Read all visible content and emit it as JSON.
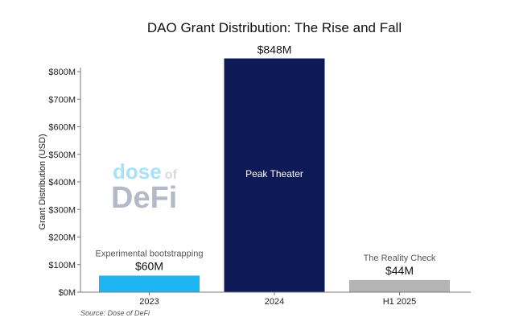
{
  "chart_data": {
    "type": "bar",
    "title": "DAO Grant Distribution: The Rise and Fall",
    "xlabel": "",
    "ylabel": "Grant Distribution (USD)",
    "categories": [
      "2023",
      "2024",
      "H1 2025"
    ],
    "values": [
      60,
      848,
      44
    ],
    "value_labels": [
      "$60M",
      "$848M",
      "$44M"
    ],
    "bar_annotations": [
      "Experimental bootstrapping",
      "Peak Theater",
      "The Reality Check"
    ],
    "colors": [
      "#1fb5f2",
      "#0e1a56",
      "#b4b4b4"
    ],
    "ylim": [
      0,
      848
    ],
    "yticks": [
      0,
      100,
      200,
      300,
      400,
      500,
      600,
      700,
      800
    ],
    "ytick_labels": [
      "$0M",
      "$100M",
      "$200M",
      "$300M",
      "$400M",
      "$500M",
      "$600M",
      "$700M",
      "$800M"
    ],
    "grid": false,
    "legend": "none",
    "source": "Source: Dose of DeFi",
    "watermark": {
      "line1": "dose",
      "line1_suffix": "of",
      "line2": "DeFi"
    }
  }
}
